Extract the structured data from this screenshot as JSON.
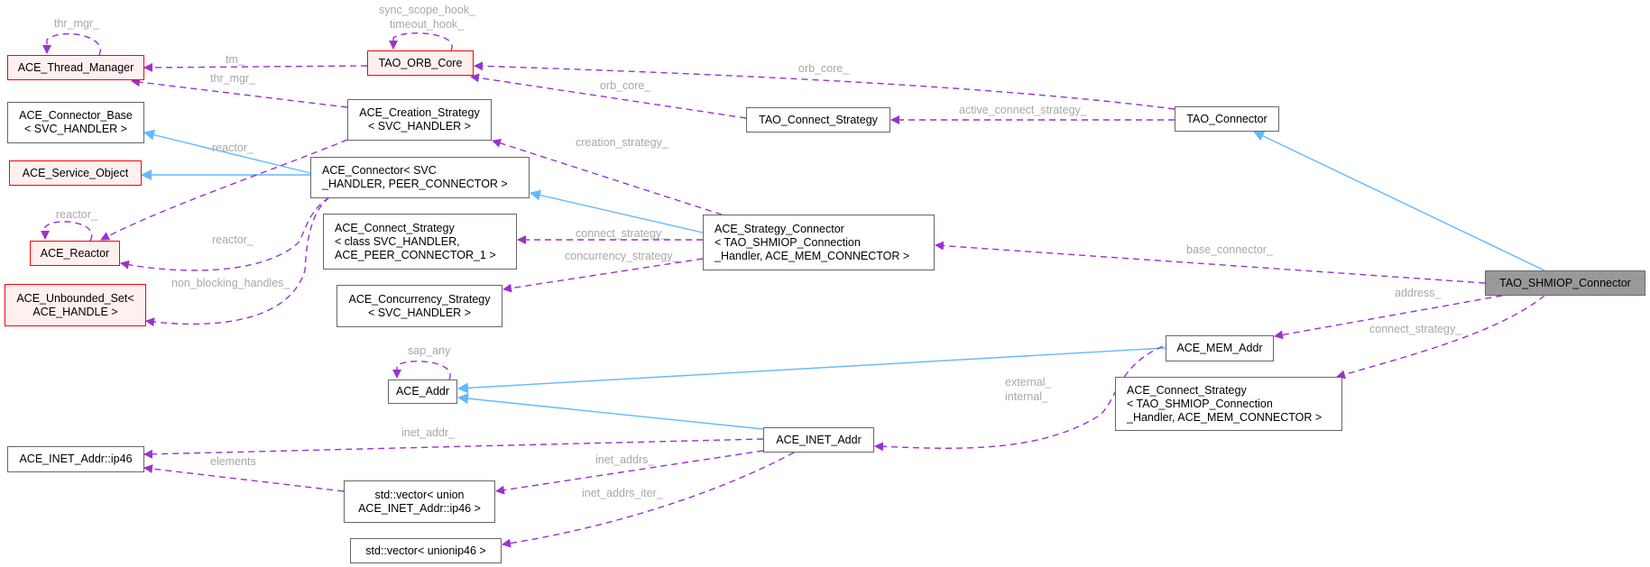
{
  "nodes": {
    "thread_manager": "ACE_Thread_Manager",
    "orb_core": "TAO_ORB_Core",
    "connector_base": "ACE_Connector_Base\n< SVC_HANDLER >",
    "service_object": "ACE_Service_Object",
    "reactor": "ACE_Reactor",
    "unbounded_set": "ACE_Unbounded_Set<\nACE_HANDLE >",
    "creation_strategy": "ACE_Creation_Strategy\n< SVC_HANDLER >",
    "ace_connector": "ACE_Connector< SVC\n_HANDLER, PEER_CONNECTOR >",
    "connect_strategy_class": "ACE_Connect_Strategy\n< class SVC_HANDLER,\n ACE_PEER_CONNECTOR_1 >",
    "concurrency_strategy": "ACE_Concurrency_Strategy\n< SVC_HANDLER >",
    "ace_addr": "ACE_Addr",
    "inet_addr_ip46": "ACE_INET_Addr::ip46",
    "vector_union": "std::vector< union\n ACE_INET_Addr::ip46 >",
    "vector_unionip46": "std::vector< unionip46 >",
    "tao_connect_strategy": "TAO_Connect_Strategy",
    "strategy_connector": "ACE_Strategy_Connector\n< TAO_SHMIOP_Connection\n_Handler, ACE_MEM_CONNECTOR >",
    "tao_connector": "TAO_Connector",
    "shmiop_connector": "TAO_SHMIOP_Connector",
    "mem_addr": "ACE_MEM_Addr",
    "connect_strategy_tao": "ACE_Connect_Strategy\n< TAO_SHMIOP_Connection\n_Handler, ACE_MEM_CONNECTOR >",
    "inet_addr": "ACE_INET_Addr"
  },
  "edge_labels": {
    "tm": "tm_",
    "thr_mgr_self": "thr_mgr_",
    "sync_scope_hook": "sync_scope_hook_",
    "timeout_hook": "timeout_hook_",
    "thr_mgr": "thr_mgr_",
    "orb_core_1": "orb_core_",
    "orb_core_2": "orb_core_",
    "active_connect_strategy": "active_connect_strategy_",
    "reactor_1": "reactor_",
    "reactor_self": "reactor_",
    "reactor_2": "reactor_",
    "non_blocking_handles": "non_blocking_handles_",
    "creation_strategy": "creation_strategy_",
    "connect_strategy_1": "connect_strategy_",
    "concurrency_strategy": "concurrency_strategy_",
    "base_connector": "base_connector_",
    "address": "address_",
    "connect_strategy_2": "connect_strategy_",
    "external": "external_",
    "internal": "internal_",
    "sap_any": "sap_any",
    "inet_addr": "inet_addr_",
    "elements": "elements",
    "inet_addrs": "inet_addrs_",
    "inet_addrs_iter": "inet_addrs_iter_"
  },
  "colors": {
    "usage_edge": "#9a32cd",
    "inheritance_edge": "#63b8ff",
    "undocumented_border": "#ff0000",
    "undocumented_fill": "#fff0f0",
    "focus_fill": "#999999"
  }
}
